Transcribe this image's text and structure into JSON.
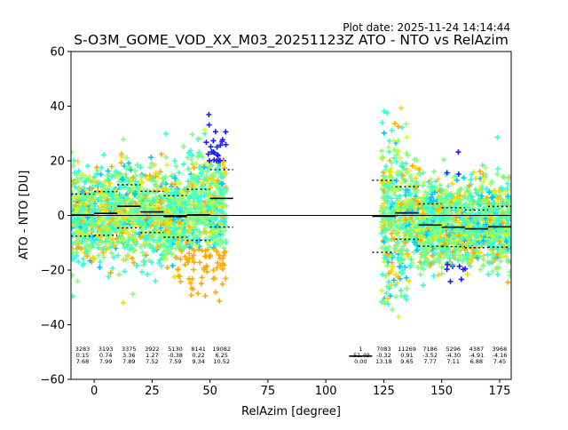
{
  "chart_data": {
    "type": "scatter",
    "plot_date": "Plot date: 2025-11-24 14:14:44",
    "title": "S-O3M_GOME_VOD_XX_M03_20251123Z ATO - NTO vs RelAzim",
    "xlabel": "RelAzim [degree]",
    "ylabel": "ATO - NTO [DU]",
    "xlim": [
      -10,
      180
    ],
    "ylim": [
      -60,
      60
    ],
    "x_ticks": [
      "0",
      "25",
      "50",
      "75",
      "100",
      "125",
      "150",
      "175"
    ],
    "y_ticks": [
      "60",
      "40",
      "20",
      "0",
      "−20",
      "−40",
      "−60"
    ],
    "grid": false,
    "marker": "+",
    "colormap": [
      "#1a1aff",
      "#00c8ff",
      "#33ffd6",
      "#80ff80",
      "#ccff33",
      "#ffd500",
      "#ffaa00"
    ],
    "bins": [
      {
        "x": -10,
        "count": "3283",
        "mean": "0.15",
        "std": "7.68",
        "mean_val": 0.15,
        "std_val": 7.68
      },
      {
        "x": 0,
        "count": "3193",
        "mean": "0.74",
        "std": "7.99",
        "mean_val": 0.74,
        "std_val": 7.99
      },
      {
        "x": 10,
        "count": "3375",
        "mean": "3.36",
        "std": "7.89",
        "mean_val": 3.36,
        "std_val": 7.89
      },
      {
        "x": 20,
        "count": "3922",
        "mean": "1.27",
        "std": "7.52",
        "mean_val": 1.27,
        "std_val": 7.52
      },
      {
        "x": 30,
        "count": "5130",
        "mean": "-0.38",
        "std": "7.59",
        "mean_val": -0.38,
        "std_val": 7.59
      },
      {
        "x": 40,
        "count": "8141",
        "mean": "0.22",
        "std": "9.34",
        "mean_val": 0.22,
        "std_val": 9.34
      },
      {
        "x": 50,
        "count": "19082",
        "mean": "6.25",
        "std": "10.52",
        "mean_val": 6.25,
        "std_val": 10.52
      },
      {
        "x": 110,
        "count": "1",
        "mean": "-51.49",
        "std": "0.00",
        "mean_val": -51.49,
        "std_val": 0.0
      },
      {
        "x": 120,
        "count": "7083",
        "mean": "-0.32",
        "std": "13.18",
        "mean_val": -0.32,
        "std_val": 13.18
      },
      {
        "x": 130,
        "count": "11269",
        "mean": "0.91",
        "std": "9.65",
        "mean_val": 0.91,
        "std_val": 9.65
      },
      {
        "x": 140,
        "count": "7186",
        "mean": "-3.52",
        "std": "7.77",
        "mean_val": -3.52,
        "std_val": 7.77
      },
      {
        "x": 150,
        "count": "5296",
        "mean": "-4.30",
        "std": "7.11",
        "mean_val": -4.3,
        "std_val": 7.11
      },
      {
        "x": 160,
        "count": "4387",
        "mean": "-4.91",
        "std": "6.88",
        "mean_val": -4.91,
        "std_val": 6.88
      },
      {
        "x": 170,
        "count": "3968",
        "mean": "-4.16",
        "std": "7.45",
        "mean_val": -4.16,
        "std_val": 7.45
      }
    ],
    "zero_line": 0
  }
}
